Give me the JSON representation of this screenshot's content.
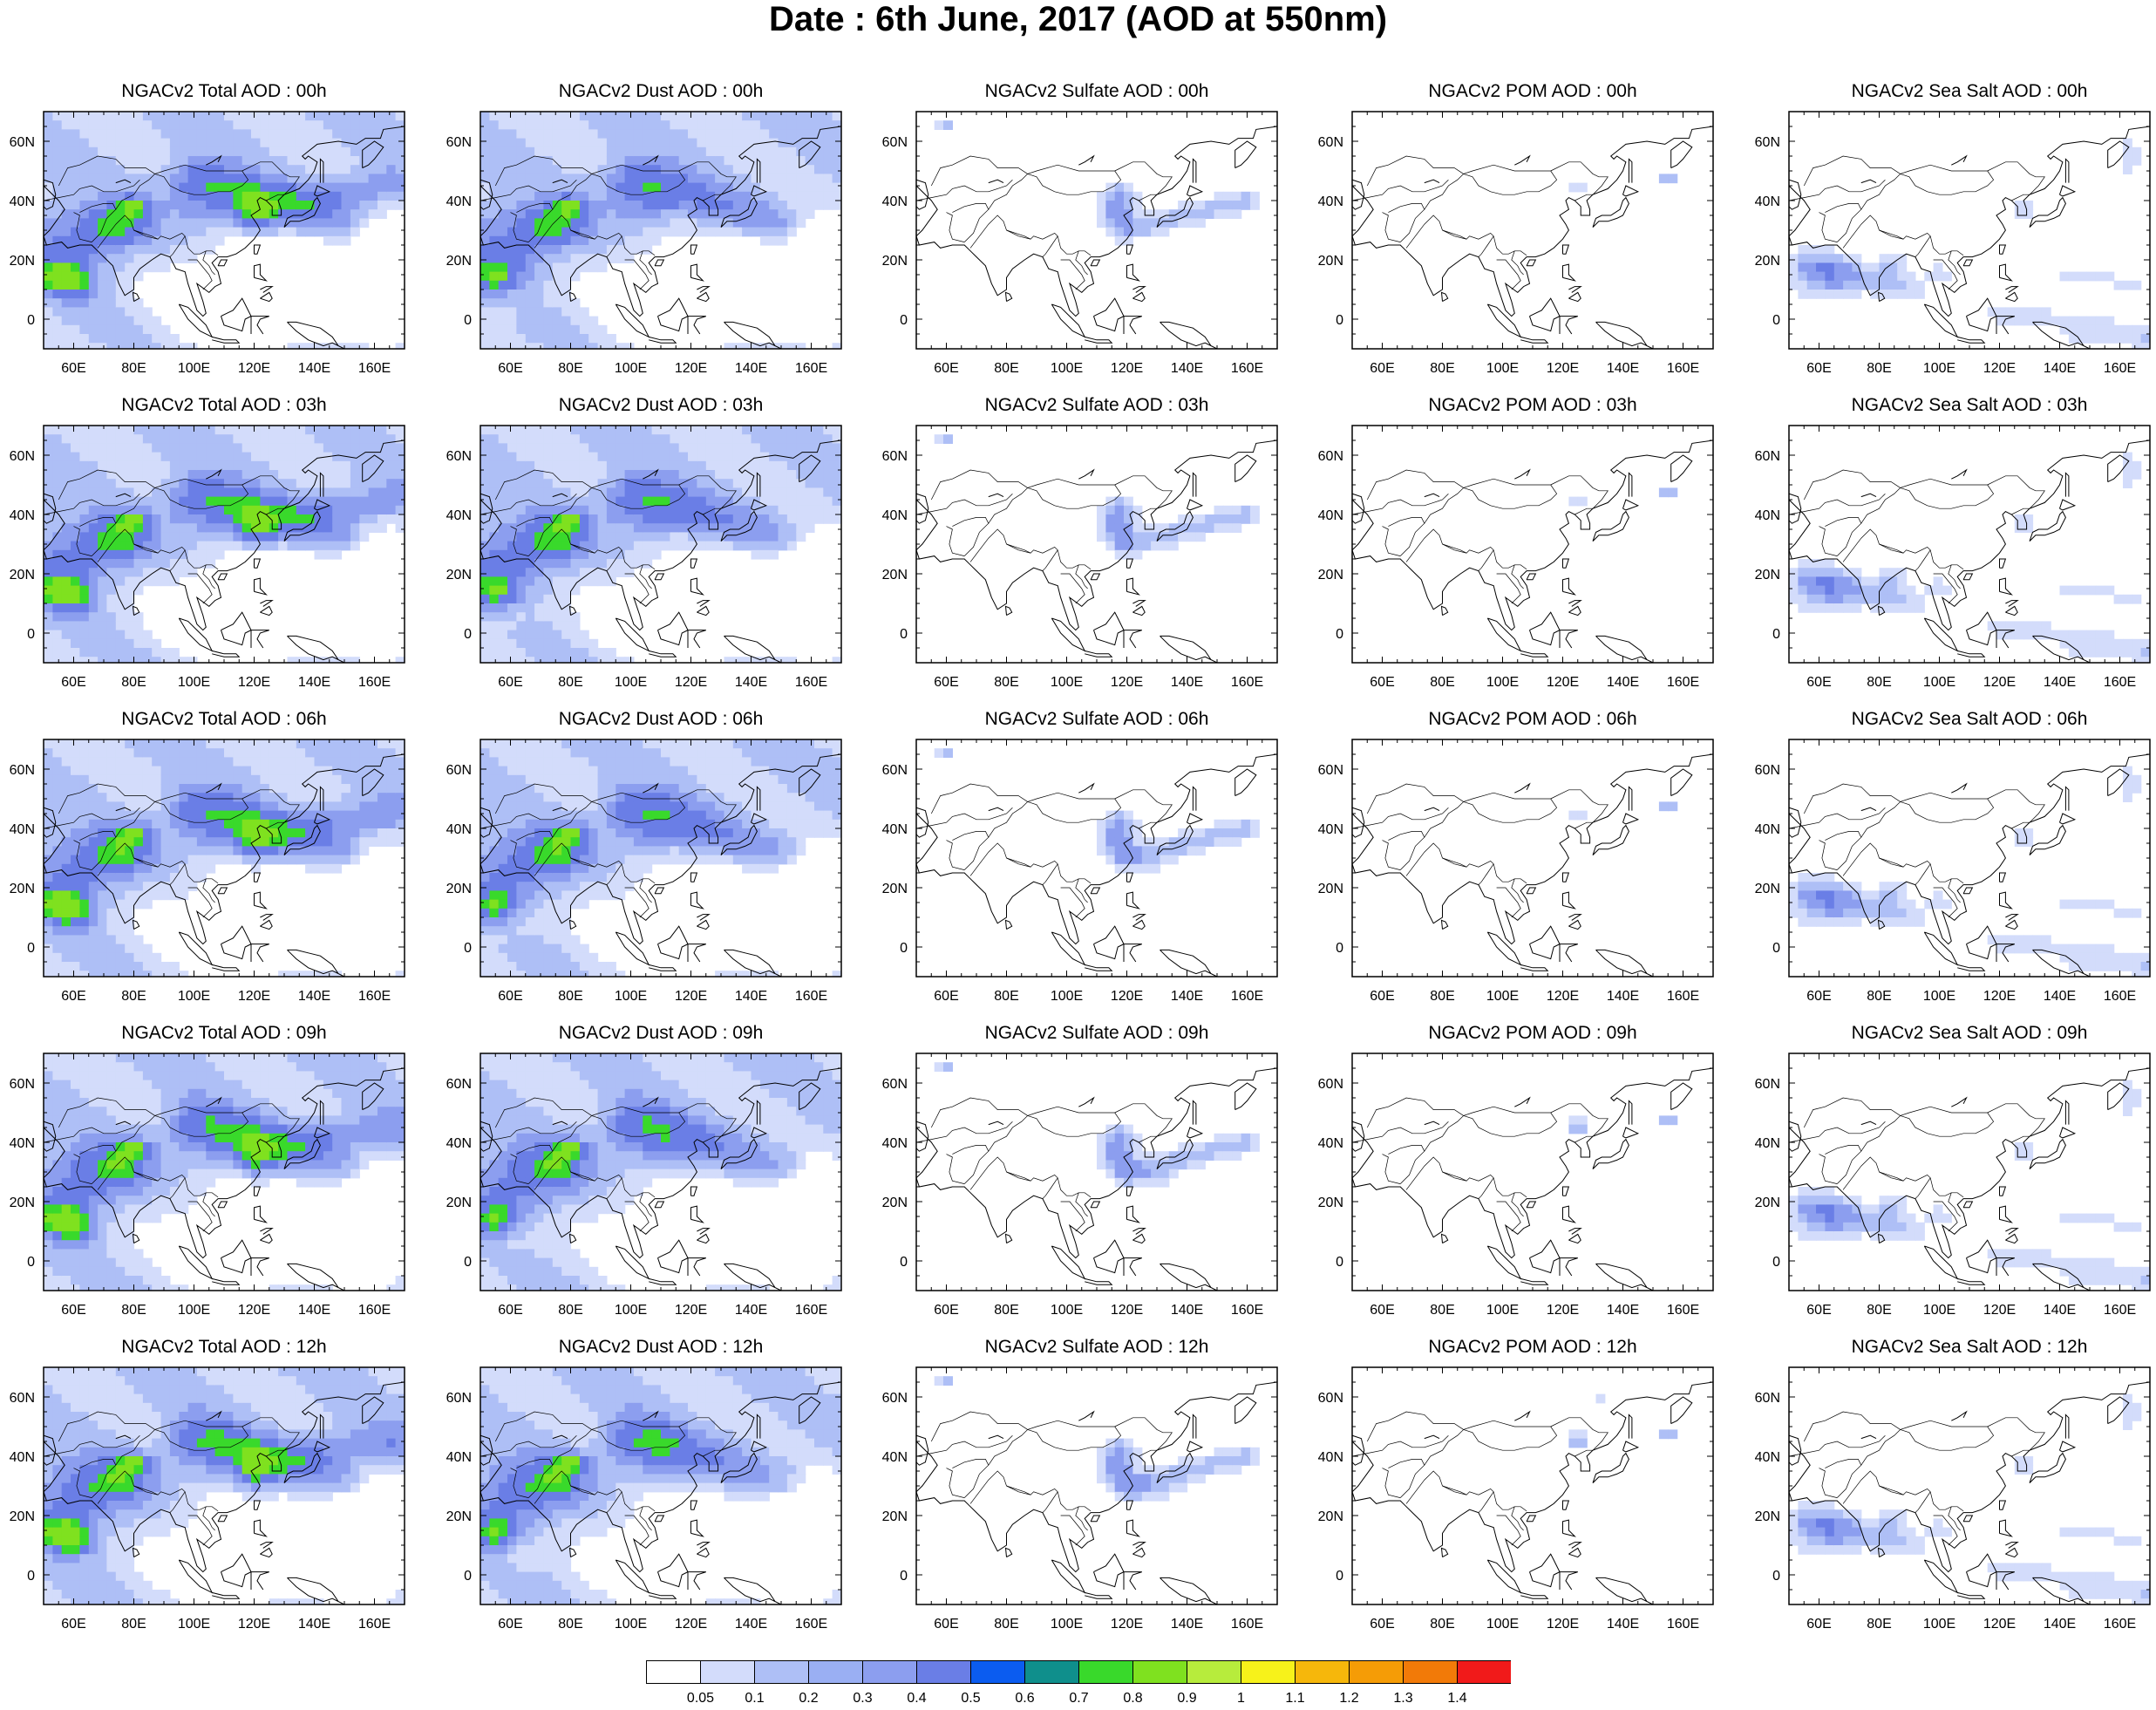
{
  "figure": {
    "title": "Date : 6th June, 2017 (AOD at 550nm)",
    "lat_ticks": [
      {
        "value": 60,
        "label": "60N"
      },
      {
        "value": 40,
        "label": "40N"
      },
      {
        "value": 20,
        "label": "20N"
      },
      {
        "value": 0,
        "label": "0"
      }
    ],
    "lon_ticks": [
      {
        "value": 60,
        "label": "60E"
      },
      {
        "value": 80,
        "label": "80E"
      },
      {
        "value": 100,
        "label": "100E"
      },
      {
        "value": 120,
        "label": "120E"
      },
      {
        "value": 140,
        "label": "140E"
      },
      {
        "value": 160,
        "label": "160E"
      }
    ],
    "map_extent": {
      "lon": [
        50,
        170
      ],
      "lat": [
        -10,
        70
      ]
    },
    "colors": {
      "coastline": "#000000",
      "frame": "#000000",
      "low_aod": "#d3dcfb",
      "moderate_aod": "#aebff6",
      "elevated_aod": "#8c9eef",
      "high_aod": "#6a7ee6",
      "peak_aod": "#5ec92c"
    }
  },
  "panels": [
    {
      "id": "total-00h",
      "title": "NGACv2 Total AOD : 00h",
      "species": "total",
      "hour": 0
    },
    {
      "id": "dust-00h",
      "title": "NGACv2 Dust AOD : 00h",
      "species": "dust",
      "hour": 0
    },
    {
      "id": "sulfate-00h",
      "title": "NGACv2 Sulfate AOD : 00h",
      "species": "sulfate",
      "hour": 0
    },
    {
      "id": "pom-00h",
      "title": "NGACv2 POM AOD : 00h",
      "species": "pom",
      "hour": 0
    },
    {
      "id": "seasalt-00h",
      "title": "NGACv2 Sea Salt AOD : 00h",
      "species": "seasalt",
      "hour": 0
    },
    {
      "id": "total-03h",
      "title": "NGACv2 Total AOD : 03h",
      "species": "total",
      "hour": 3
    },
    {
      "id": "dust-03h",
      "title": "NGACv2 Dust AOD : 03h",
      "species": "dust",
      "hour": 3
    },
    {
      "id": "sulfate-03h",
      "title": "NGACv2 Sulfate AOD : 03h",
      "species": "sulfate",
      "hour": 3
    },
    {
      "id": "pom-03h",
      "title": "NGACv2 POM AOD : 03h",
      "species": "pom",
      "hour": 3
    },
    {
      "id": "seasalt-03h",
      "title": "NGACv2 Sea Salt AOD : 03h",
      "species": "seasalt",
      "hour": 3
    },
    {
      "id": "total-06h",
      "title": "NGACv2 Total AOD : 06h",
      "species": "total",
      "hour": 6
    },
    {
      "id": "dust-06h",
      "title": "NGACv2 Dust AOD : 06h",
      "species": "dust",
      "hour": 6
    },
    {
      "id": "sulfate-06h",
      "title": "NGACv2 Sulfate AOD : 06h",
      "species": "sulfate",
      "hour": 6
    },
    {
      "id": "pom-06h",
      "title": "NGACv2 POM AOD : 06h",
      "species": "pom",
      "hour": 6
    },
    {
      "id": "seasalt-06h",
      "title": "NGACv2 Sea Salt AOD : 06h",
      "species": "seasalt",
      "hour": 6
    },
    {
      "id": "total-09h",
      "title": "NGACv2 Total AOD : 09h",
      "species": "total",
      "hour": 9
    },
    {
      "id": "dust-09h",
      "title": "NGACv2 Dust AOD : 09h",
      "species": "dust",
      "hour": 9
    },
    {
      "id": "sulfate-09h",
      "title": "NGACv2 Sulfate AOD : 09h",
      "species": "sulfate",
      "hour": 9
    },
    {
      "id": "pom-09h",
      "title": "NGACv2 POM AOD : 09h",
      "species": "pom",
      "hour": 9
    },
    {
      "id": "seasalt-09h",
      "title": "NGACv2 Sea Salt  AOD : 09h",
      "species": "seasalt",
      "hour": 9
    },
    {
      "id": "total-12h",
      "title": "NGACv2 Total AOD  : 12h",
      "species": "total",
      "hour": 12
    },
    {
      "id": "dust-12h",
      "title": "NGACv2 Dust AOD : 12h",
      "species": "dust",
      "hour": 12
    },
    {
      "id": "sulfate-12h",
      "title": "NGACv2 Sulfate AOD : 12h",
      "species": "sulfate",
      "hour": 12
    },
    {
      "id": "pom-12h",
      "title": "NGACv2 POM  AOD : 12h",
      "species": "pom",
      "hour": 12
    },
    {
      "id": "seasalt-12h",
      "title": "NGACv2 Sea Salt  AOD : 12h",
      "species": "seasalt",
      "hour": 12
    }
  ],
  "colorbar": {
    "colors": [
      "#ffffff",
      "#d3dcfb",
      "#aebff6",
      "#9aaff3",
      "#8c9eef",
      "#6a7ee6",
      "#0b5cf0",
      "#0f8f8c",
      "#39d92b",
      "#7fe11f",
      "#b7ec3c",
      "#f7f21a",
      "#f6b70b",
      "#f59c06",
      "#f27a08",
      "#f11a1a"
    ],
    "labels": [
      "0.05",
      "0.1",
      "0.2",
      "0.3",
      "0.4",
      "0.5",
      "0.6",
      "0.7",
      "0.8",
      "0.9",
      "1",
      "1.1",
      "1.2",
      "1.3",
      "1.4"
    ]
  }
}
